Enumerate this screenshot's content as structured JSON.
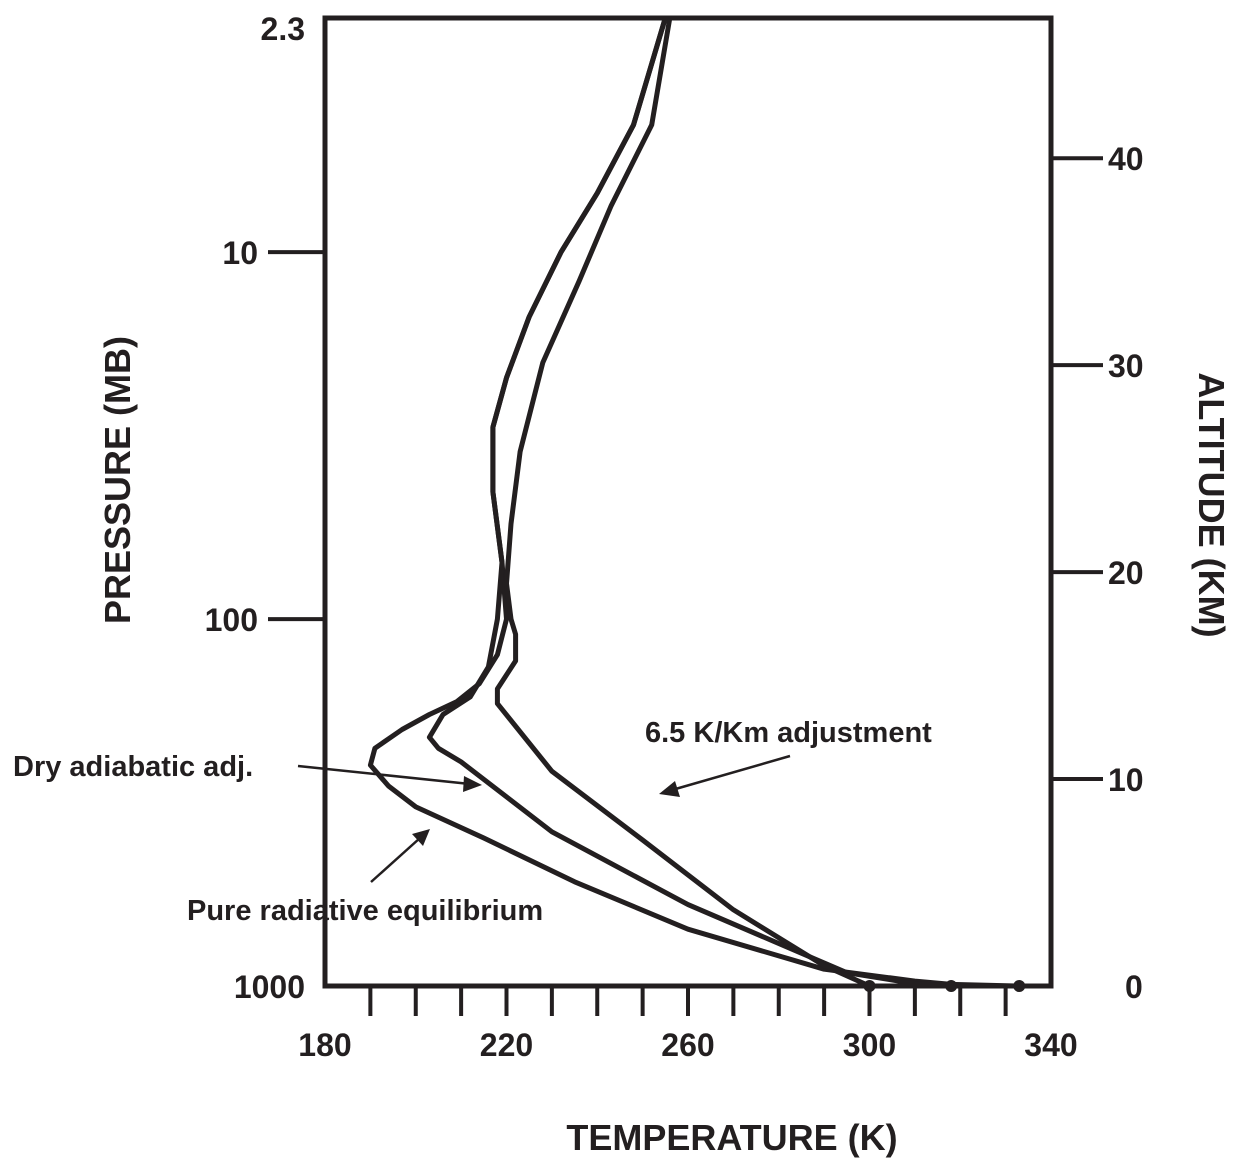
{
  "chart_data": {
    "type": "line",
    "title": "",
    "xlabel": "TEMPERATURE (K)",
    "ylabel": "PRESSURE (MB)",
    "y2label": "ALTITUDE (KM)",
    "xlim": [
      180,
      340
    ],
    "x_ticks": [
      180,
      220,
      260,
      300,
      340
    ],
    "y_pressure_ticks": [
      2.3,
      10,
      100,
      1000
    ],
    "y_pressure_scale": "log",
    "y_altitude_ticks": [
      0,
      10,
      20,
      30,
      40
    ],
    "grid": false,
    "series": [
      {
        "name": "Pure radiative equilibrium",
        "points": [
          [
            333,
            1000
          ],
          [
            318,
            990
          ],
          [
            310,
            970
          ],
          [
            290,
            900
          ],
          [
            260,
            700
          ],
          [
            235,
            520
          ],
          [
            215,
            395
          ],
          [
            200,
            325
          ],
          [
            194,
            285
          ],
          [
            190,
            250
          ],
          [
            191,
            225
          ],
          [
            197,
            200
          ],
          [
            203,
            182
          ],
          [
            209,
            168
          ],
          [
            214,
            150
          ],
          [
            218,
            125
          ],
          [
            220,
            100
          ],
          [
            219,
            70
          ],
          [
            217,
            45
          ],
          [
            217,
            30
          ],
          [
            220,
            22
          ],
          [
            225,
            15
          ],
          [
            232,
            10
          ],
          [
            240,
            6.9
          ],
          [
            248,
            4.5
          ],
          [
            255,
            2.3
          ]
        ]
      },
      {
        "name": "Dry adiabatic adj.",
        "points": [
          [
            318,
            1000
          ],
          [
            310,
            985
          ],
          [
            295,
            920
          ],
          [
            260,
            600
          ],
          [
            230,
            380
          ],
          [
            210,
            245
          ],
          [
            205,
            225
          ],
          [
            203,
            210
          ],
          [
            206,
            182
          ],
          [
            212,
            163
          ],
          [
            216,
            135
          ],
          [
            218,
            100
          ],
          [
            219,
            70
          ],
          [
            217,
            45
          ],
          [
            217,
            30
          ],
          [
            220,
            22
          ],
          [
            225,
            15
          ],
          [
            232,
            10
          ],
          [
            240,
            6.9
          ],
          [
            248,
            4.5
          ],
          [
            255,
            2.3
          ]
        ]
      },
      {
        "name": "6.5 K/Km adjustment",
        "points": [
          [
            300,
            1000
          ],
          [
            290,
            880
          ],
          [
            270,
            620
          ],
          [
            250,
            400
          ],
          [
            230,
            260
          ],
          [
            218,
            170
          ],
          [
            218,
            155
          ],
          [
            222,
            130
          ],
          [
            222,
            110
          ],
          [
            221,
            100
          ],
          [
            220,
            80
          ],
          [
            221,
            55
          ],
          [
            223,
            35
          ],
          [
            228,
            20
          ],
          [
            236,
            12
          ],
          [
            243,
            7.5
          ],
          [
            252,
            4.5
          ],
          [
            256,
            2.3
          ]
        ]
      }
    ],
    "annotations": [
      "Dry adiabatic adj.",
      "Pure radiative equilibrium",
      "6.5 K/Km adjustment"
    ]
  }
}
